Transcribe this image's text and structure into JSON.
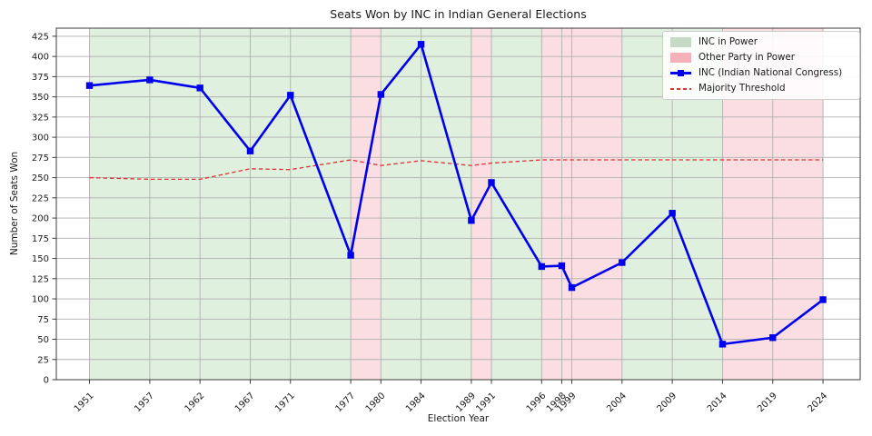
{
  "chart_data": {
    "type": "line",
    "title": "Seats Won by INC in Indian General Elections",
    "xlabel": "Election Year",
    "ylabel": "Number of Seats Won",
    "x": [
      1951,
      1957,
      1962,
      1967,
      1971,
      1977,
      1980,
      1984,
      1989,
      1991,
      1996,
      1998,
      1999,
      2004,
      2009,
      2014,
      2019,
      2024
    ],
    "series": [
      {
        "name": "INC (Indian National Congress)",
        "values": [
          364,
          371,
          361,
          283,
          352,
          154,
          353,
          415,
          197,
          244,
          140,
          141,
          114,
          145,
          206,
          44,
          52,
          99
        ],
        "color": "#0000ee",
        "marker": "square",
        "style": "solid"
      },
      {
        "name": "Majority Threshold",
        "values": [
          250,
          248,
          248,
          261,
          260,
          272,
          265,
          271,
          265,
          268,
          272,
          272,
          272,
          272,
          272,
          272,
          272,
          272
        ],
        "color": "#dc3232",
        "marker": "none",
        "style": "dashed"
      }
    ],
    "power_spans": [
      {
        "from": 1951,
        "to": 1977,
        "party": "INC"
      },
      {
        "from": 1977,
        "to": 1980,
        "party": "Other"
      },
      {
        "from": 1980,
        "to": 1989,
        "party": "INC"
      },
      {
        "from": 1989,
        "to": 1991,
        "party": "Other"
      },
      {
        "from": 1991,
        "to": 1996,
        "party": "INC"
      },
      {
        "from": 1996,
        "to": 2004,
        "party": "Other"
      },
      {
        "from": 2004,
        "to": 2014,
        "party": "INC"
      },
      {
        "from": 2014,
        "to": 2024,
        "party": "Other"
      }
    ],
    "y_ticks": [
      0,
      25,
      50,
      75,
      100,
      125,
      150,
      175,
      200,
      225,
      250,
      275,
      300,
      325,
      350,
      375,
      400,
      425
    ],
    "ylim": [
      0,
      435
    ],
    "xlim": [
      1947.7,
      2027.7
    ],
    "grid": true,
    "legend": {
      "position": "upper-right",
      "items": [
        {
          "label": "INC in Power",
          "swatch": "patch",
          "color": "#c7dac7"
        },
        {
          "label": "Other Party in Power",
          "swatch": "patch",
          "color": "#f5b0ba"
        },
        {
          "label": "INC (Indian National Congress)",
          "swatch": "line-marker",
          "color": "#0000ee"
        },
        {
          "label": "Majority Threshold",
          "swatch": "dashed-line",
          "color": "#dc3232"
        }
      ]
    }
  },
  "colors": {
    "inc_line": "#0000ee",
    "threshold_line": "#dc3232",
    "inc_power_bg": "#dff0de",
    "other_power_bg": "#fbdee2",
    "grid": "#b0b0b0",
    "spine": "#3c3c3c",
    "text": "#1a1a1a"
  }
}
